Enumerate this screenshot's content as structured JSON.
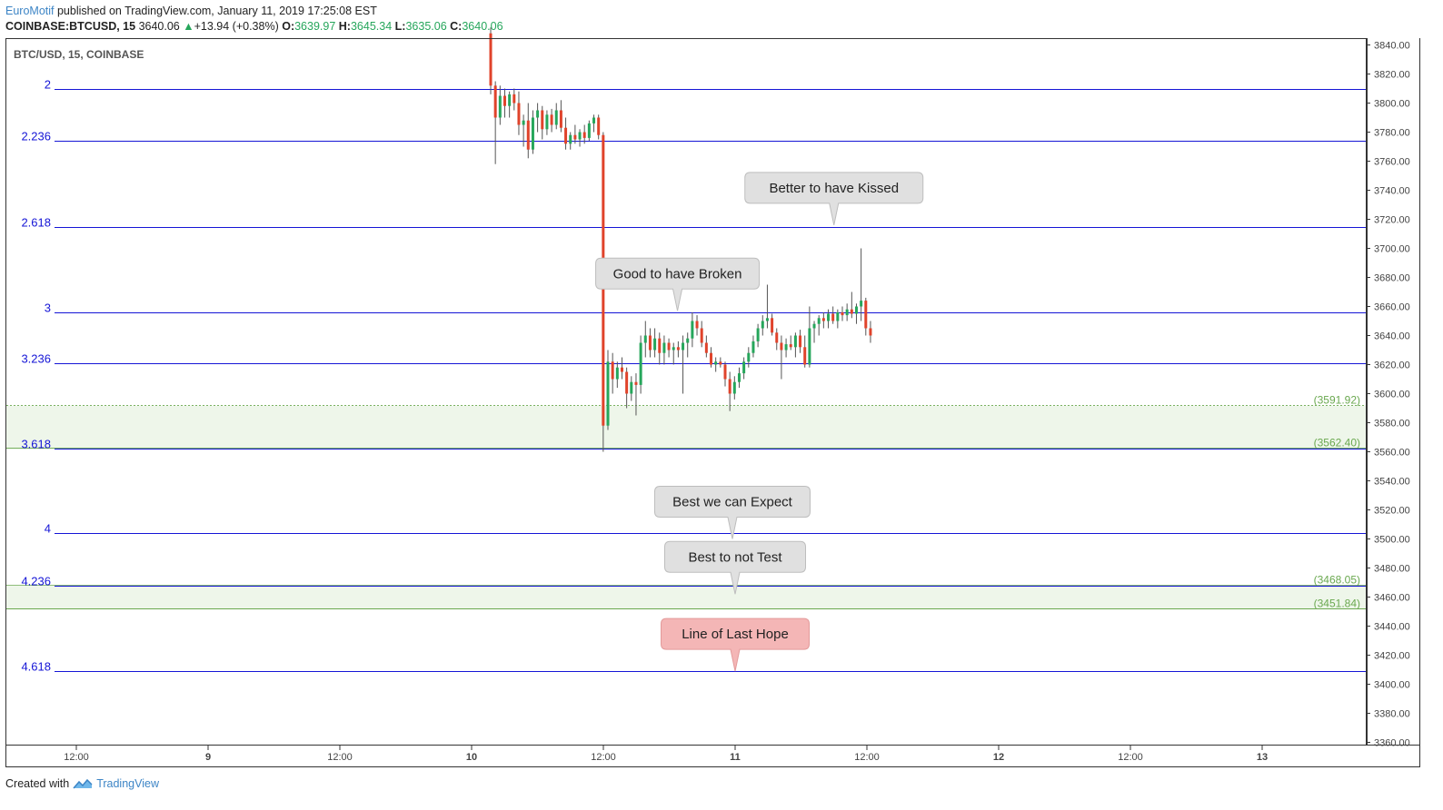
{
  "header": {
    "author": "EuroMotif",
    "published_text": "published on TradingView.com, January 11, 2019 17:25:08 EST",
    "symbol": "COINBASE:BTCUSD, 15",
    "last": "3640.06",
    "change": "+13.94 (+0.38%)",
    "o_label": "O:",
    "o_value": "3639.97",
    "h_label": "H:",
    "h_value": "3645.34",
    "l_label": "L:",
    "l_value": "3635.06",
    "c_label": "C:",
    "c_value": "3640.06"
  },
  "footer": {
    "created_with": "Created with",
    "brand": "TradingView"
  },
  "colors": {
    "fib_line": "#1515d6",
    "fib_label": "#1515d6",
    "zone_fill": "#eef6ea",
    "zone_label": "#6aa84f",
    "candle_up": "#26a65b",
    "candle_down": "#e0432b",
    "wick": "#555555",
    "callout_gray": "#e0e0e0",
    "callout_red": "#f4b6b6",
    "axis_text": "#444444"
  },
  "chart_data": {
    "type": "candlestick",
    "title": "BTC/USD, 15, COINBASE",
    "xlabel": "",
    "ylabel": "",
    "ylim": [
      3350,
      3850
    ],
    "x_ticks": [
      "12:00",
      "9",
      "12:00",
      "10",
      "12:00",
      "11",
      "12:00",
      "12",
      "12:00",
      "13"
    ],
    "x_ticks_bold": [
      false,
      true,
      false,
      true,
      false,
      true,
      false,
      true,
      false,
      true
    ],
    "y_ticks": [
      "3840.00",
      "3820.00",
      "3800.00",
      "3780.00",
      "3760.00",
      "3740.00",
      "3720.00",
      "3700.00",
      "3680.00",
      "3660.00",
      "3640.00",
      "3620.00",
      "3600.00",
      "3580.00",
      "3560.00",
      "3540.00",
      "3520.00",
      "3500.00",
      "3480.00",
      "3460.00",
      "3440.00",
      "3420.00",
      "3400.00",
      "3380.00",
      "3360.00"
    ],
    "fib_levels": [
      {
        "label": "2",
        "price": 3810
      },
      {
        "label": "2.236",
        "price": 3774
      },
      {
        "label": "2.618",
        "price": 3715
      },
      {
        "label": "3",
        "price": 3656
      },
      {
        "label": "3.236",
        "price": 3621
      },
      {
        "label": "3.618",
        "price": 3562.4
      },
      {
        "label": "4",
        "price": 3504
      },
      {
        "label": "4.236",
        "price": 3468.05
      },
      {
        "label": "4.618",
        "price": 3409
      }
    ],
    "zones": [
      {
        "top": 3591.92,
        "bottom": 3562.4,
        "top_label": "(3591.92)",
        "bottom_label": "(3562.40)"
      },
      {
        "top": 3468.05,
        "bottom": 3451.84,
        "top_label": "(3468.05)",
        "bottom_label": "(3451.84)"
      }
    ],
    "callouts": [
      {
        "text": "Better to have Kissed",
        "x": "Jan 11 09:00",
        "price": 3716,
        "style": "gray"
      },
      {
        "text": "Good to have Broken",
        "x": "Jan 10 18:45",
        "price": 3657,
        "style": "gray"
      },
      {
        "text": "Best we can Expect",
        "x": "Jan 10 23:45",
        "price": 3500,
        "style": "gray"
      },
      {
        "text": "Best to not Test",
        "x": "Jan 11 00:00",
        "price": 3462,
        "style": "gray"
      },
      {
        "text": "Line of Last Hope",
        "x": "Jan 11 00:00",
        "price": 3409,
        "style": "red"
      }
    ],
    "series": [
      {
        "t": 0,
        "o": 3848,
        "h": 3852,
        "l": 3806,
        "c": 3812
      },
      {
        "t": 1,
        "o": 3812,
        "h": 3815,
        "l": 3758,
        "c": 3790
      },
      {
        "t": 2,
        "o": 3790,
        "h": 3812,
        "l": 3785,
        "c": 3805
      },
      {
        "t": 3,
        "o": 3805,
        "h": 3810,
        "l": 3790,
        "c": 3798
      },
      {
        "t": 4,
        "o": 3798,
        "h": 3808,
        "l": 3790,
        "c": 3806
      },
      {
        "t": 5,
        "o": 3806,
        "h": 3810,
        "l": 3795,
        "c": 3800
      },
      {
        "t": 6,
        "o": 3800,
        "h": 3808,
        "l": 3778,
        "c": 3785
      },
      {
        "t": 7,
        "o": 3785,
        "h": 3792,
        "l": 3770,
        "c": 3788
      },
      {
        "t": 8,
        "o": 3788,
        "h": 3800,
        "l": 3762,
        "c": 3768
      },
      {
        "t": 9,
        "o": 3768,
        "h": 3795,
        "l": 3765,
        "c": 3790
      },
      {
        "t": 10,
        "o": 3790,
        "h": 3800,
        "l": 3780,
        "c": 3795
      },
      {
        "t": 11,
        "o": 3795,
        "h": 3798,
        "l": 3775,
        "c": 3782
      },
      {
        "t": 12,
        "o": 3782,
        "h": 3795,
        "l": 3778,
        "c": 3792
      },
      {
        "t": 13,
        "o": 3792,
        "h": 3796,
        "l": 3780,
        "c": 3785
      },
      {
        "t": 14,
        "o": 3785,
        "h": 3800,
        "l": 3782,
        "c": 3795
      },
      {
        "t": 15,
        "o": 3795,
        "h": 3802,
        "l": 3780,
        "c": 3783
      },
      {
        "t": 16,
        "o": 3783,
        "h": 3790,
        "l": 3768,
        "c": 3772
      },
      {
        "t": 17,
        "o": 3772,
        "h": 3780,
        "l": 3768,
        "c": 3778
      },
      {
        "t": 18,
        "o": 3778,
        "h": 3785,
        "l": 3772,
        "c": 3775
      },
      {
        "t": 19,
        "o": 3775,
        "h": 3782,
        "l": 3770,
        "c": 3780
      },
      {
        "t": 20,
        "o": 3780,
        "h": 3785,
        "l": 3772,
        "c": 3776
      },
      {
        "t": 21,
        "o": 3776,
        "h": 3788,
        "l": 3774,
        "c": 3786
      },
      {
        "t": 22,
        "o": 3786,
        "h": 3792,
        "l": 3780,
        "c": 3790
      },
      {
        "t": 23,
        "o": 3790,
        "h": 3792,
        "l": 3775,
        "c": 3778
      },
      {
        "t": 24,
        "o": 3778,
        "h": 3780,
        "l": 3560,
        "c": 3578
      },
      {
        "t": 25,
        "o": 3578,
        "h": 3630,
        "l": 3575,
        "c": 3622
      },
      {
        "t": 26,
        "o": 3622,
        "h": 3628,
        "l": 3600,
        "c": 3610
      },
      {
        "t": 27,
        "o": 3610,
        "h": 3622,
        "l": 3604,
        "c": 3618
      },
      {
        "t": 28,
        "o": 3618,
        "h": 3625,
        "l": 3610,
        "c": 3615
      },
      {
        "t": 29,
        "o": 3615,
        "h": 3618,
        "l": 3590,
        "c": 3600
      },
      {
        "t": 30,
        "o": 3600,
        "h": 3612,
        "l": 3595,
        "c": 3608
      },
      {
        "t": 31,
        "o": 3608,
        "h": 3614,
        "l": 3585,
        "c": 3606
      },
      {
        "t": 32,
        "o": 3606,
        "h": 3640,
        "l": 3600,
        "c": 3635
      },
      {
        "t": 33,
        "o": 3635,
        "h": 3650,
        "l": 3625,
        "c": 3640
      },
      {
        "t": 34,
        "o": 3640,
        "h": 3645,
        "l": 3625,
        "c": 3630
      },
      {
        "t": 35,
        "o": 3630,
        "h": 3645,
        "l": 3625,
        "c": 3638
      },
      {
        "t": 36,
        "o": 3638,
        "h": 3642,
        "l": 3620,
        "c": 3628
      },
      {
        "t": 37,
        "o": 3628,
        "h": 3640,
        "l": 3620,
        "c": 3635
      },
      {
        "t": 38,
        "o": 3635,
        "h": 3638,
        "l": 3625,
        "c": 3630
      },
      {
        "t": 39,
        "o": 3630,
        "h": 3635,
        "l": 3620,
        "c": 3632
      },
      {
        "t": 40,
        "o": 3632,
        "h": 3636,
        "l": 3625,
        "c": 3630
      },
      {
        "t": 41,
        "o": 3630,
        "h": 3640,
        "l": 3600,
        "c": 3635
      },
      {
        "t": 42,
        "o": 3635,
        "h": 3642,
        "l": 3625,
        "c": 3638
      },
      {
        "t": 43,
        "o": 3638,
        "h": 3656,
        "l": 3632,
        "c": 3650
      },
      {
        "t": 44,
        "o": 3650,
        "h": 3654,
        "l": 3640,
        "c": 3645
      },
      {
        "t": 45,
        "o": 3645,
        "h": 3650,
        "l": 3632,
        "c": 3635
      },
      {
        "t": 46,
        "o": 3635,
        "h": 3640,
        "l": 3625,
        "c": 3628
      },
      {
        "t": 47,
        "o": 3628,
        "h": 3632,
        "l": 3618,
        "c": 3620
      },
      {
        "t": 48,
        "o": 3620,
        "h": 3625,
        "l": 3615,
        "c": 3622
      },
      {
        "t": 49,
        "o": 3622,
        "h": 3625,
        "l": 3618,
        "c": 3620
      },
      {
        "t": 50,
        "o": 3620,
        "h": 3622,
        "l": 3605,
        "c": 3610
      },
      {
        "t": 51,
        "o": 3610,
        "h": 3615,
        "l": 3588,
        "c": 3600
      },
      {
        "t": 52,
        "o": 3600,
        "h": 3612,
        "l": 3596,
        "c": 3608
      },
      {
        "t": 53,
        "o": 3608,
        "h": 3618,
        "l": 3604,
        "c": 3614
      },
      {
        "t": 54,
        "o": 3614,
        "h": 3625,
        "l": 3610,
        "c": 3622
      },
      {
        "t": 55,
        "o": 3622,
        "h": 3632,
        "l": 3618,
        "c": 3628
      },
      {
        "t": 56,
        "o": 3628,
        "h": 3640,
        "l": 3625,
        "c": 3636
      },
      {
        "t": 57,
        "o": 3636,
        "h": 3648,
        "l": 3632,
        "c": 3645
      },
      {
        "t": 58,
        "o": 3645,
        "h": 3654,
        "l": 3640,
        "c": 3650
      },
      {
        "t": 59,
        "o": 3650,
        "h": 3675,
        "l": 3645,
        "c": 3652
      },
      {
        "t": 60,
        "o": 3652,
        "h": 3655,
        "l": 3640,
        "c": 3642
      },
      {
        "t": 61,
        "o": 3642,
        "h": 3645,
        "l": 3630,
        "c": 3635
      },
      {
        "t": 62,
        "o": 3635,
        "h": 3640,
        "l": 3610,
        "c": 3630
      },
      {
        "t": 63,
        "o": 3630,
        "h": 3638,
        "l": 3625,
        "c": 3634
      },
      {
        "t": 64,
        "o": 3634,
        "h": 3640,
        "l": 3630,
        "c": 3632
      },
      {
        "t": 65,
        "o": 3632,
        "h": 3642,
        "l": 3625,
        "c": 3640
      },
      {
        "t": 66,
        "o": 3640,
        "h": 3644,
        "l": 3628,
        "c": 3632
      },
      {
        "t": 67,
        "o": 3632,
        "h": 3640,
        "l": 3618,
        "c": 3620
      },
      {
        "t": 68,
        "o": 3620,
        "h": 3660,
        "l": 3618,
        "c": 3645
      },
      {
        "t": 69,
        "o": 3645,
        "h": 3650,
        "l": 3635,
        "c": 3648
      },
      {
        "t": 70,
        "o": 3648,
        "h": 3654,
        "l": 3640,
        "c": 3652
      },
      {
        "t": 71,
        "o": 3652,
        "h": 3656,
        "l": 3645,
        "c": 3650
      },
      {
        "t": 72,
        "o": 3650,
        "h": 3658,
        "l": 3645,
        "c": 3655
      },
      {
        "t": 73,
        "o": 3655,
        "h": 3660,
        "l": 3648,
        "c": 3650
      },
      {
        "t": 74,
        "o": 3650,
        "h": 3658,
        "l": 3645,
        "c": 3656
      },
      {
        "t": 75,
        "o": 3656,
        "h": 3660,
        "l": 3650,
        "c": 3654
      },
      {
        "t": 76,
        "o": 3654,
        "h": 3662,
        "l": 3650,
        "c": 3658
      },
      {
        "t": 77,
        "o": 3658,
        "h": 3670,
        "l": 3652,
        "c": 3655
      },
      {
        "t": 78,
        "o": 3655,
        "h": 3662,
        "l": 3648,
        "c": 3660
      },
      {
        "t": 79,
        "o": 3660,
        "h": 3700,
        "l": 3650,
        "c": 3664
      },
      {
        "t": 80,
        "o": 3664,
        "h": 3666,
        "l": 3640,
        "c": 3645
      },
      {
        "t": 81,
        "o": 3645,
        "h": 3650,
        "l": 3635,
        "c": 3640
      }
    ]
  }
}
